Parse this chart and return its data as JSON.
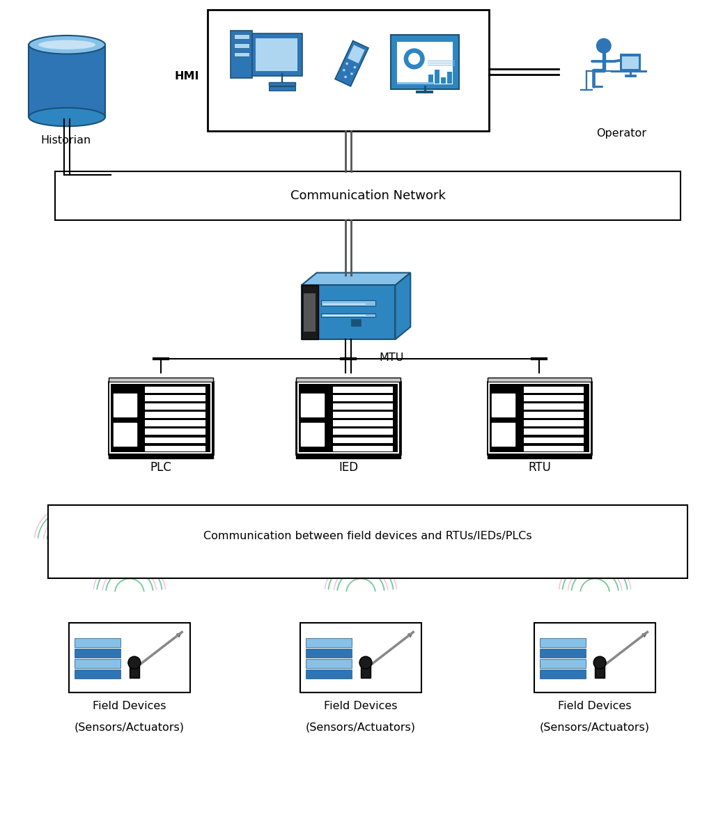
{
  "bg_color": "#ffffff",
  "blue_dark": "#1a5276",
  "blue_main": "#2e75b6",
  "blue_mid": "#2e86c1",
  "blue_light": "#85c1e9",
  "blue_lighter": "#aed6f1",
  "blue_bg": "#d6eaf8",
  "green_wifi": "#27ae60",
  "pink_wifi": "#e91e8c",
  "black": "#000000",
  "dark_gray": "#1a1a1a",
  "gray": "#555555",
  "light_gray": "#cccccc",
  "components": {
    "historian_label": "Historian",
    "hmi_label": "HMI",
    "operator_label": "Operator",
    "comm_network_label": "Communication Network",
    "mtu_label": "MTU",
    "plc_label": "PLC",
    "ied_label": "IED",
    "rtu_label": "RTU",
    "comm_field_label": "Communication between field devices and RTUs/IEDs/PLCs",
    "field_label1": "Field Devices",
    "field_label2": "(Sensors/Actuators)"
  },
  "layout": {
    "fig_width": 10.38,
    "fig_height": 12.0,
    "dpi": 100
  }
}
